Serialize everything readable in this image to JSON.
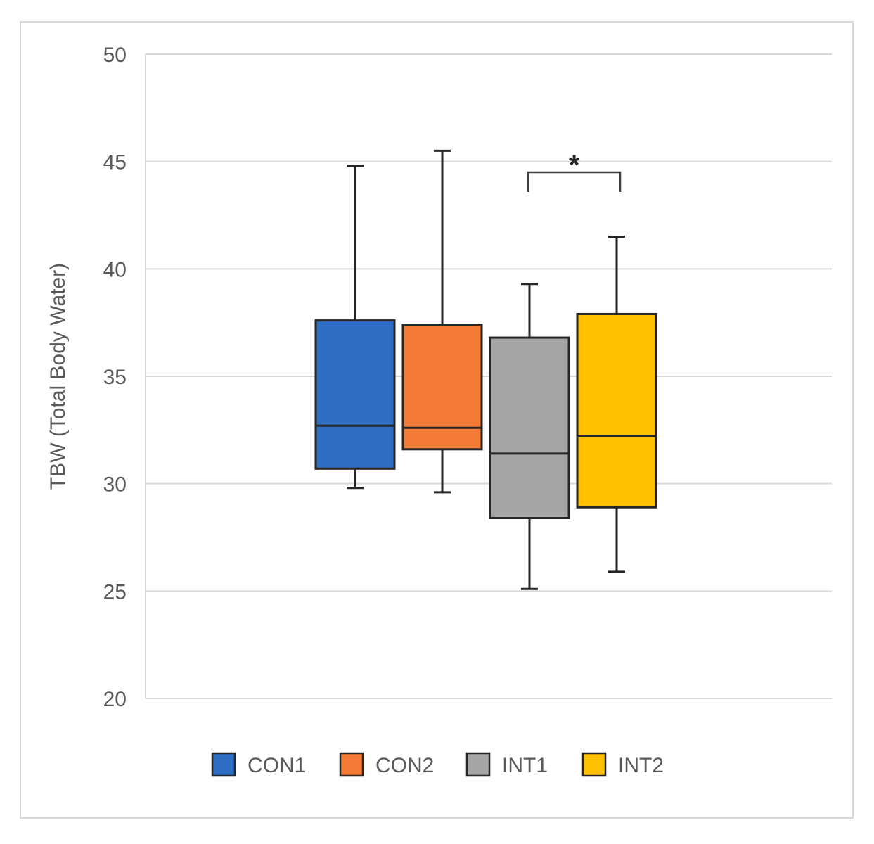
{
  "chart_data": {
    "type": "boxplot",
    "title": "",
    "xlabel": "",
    "ylabel": "TBW (Total Body Water)",
    "ylim": [
      20,
      50
    ],
    "yticks": [
      20,
      25,
      30,
      35,
      40,
      45,
      50
    ],
    "grid": true,
    "legend_position": "bottom",
    "series": [
      {
        "name": "CON1",
        "color": "#2e6fc4",
        "min": 29.8,
        "q1": 30.7,
        "median": 32.7,
        "q3": 37.6,
        "max": 44.8
      },
      {
        "name": "CON2",
        "color": "#f47b36",
        "min": 29.6,
        "q1": 31.6,
        "median": 32.6,
        "q3": 37.4,
        "max": 45.5
      },
      {
        "name": "INT1",
        "color": "#a6a6a6",
        "min": 25.1,
        "q1": 28.4,
        "median": 31.4,
        "q3": 36.8,
        "max": 39.3
      },
      {
        "name": "INT2",
        "color": "#ffc000",
        "min": 25.9,
        "q1": 28.9,
        "median": 32.2,
        "q3": 37.9,
        "max": 41.5
      }
    ],
    "annotations": [
      {
        "text": "*",
        "between": [
          "INT1",
          "INT2"
        ]
      }
    ]
  }
}
